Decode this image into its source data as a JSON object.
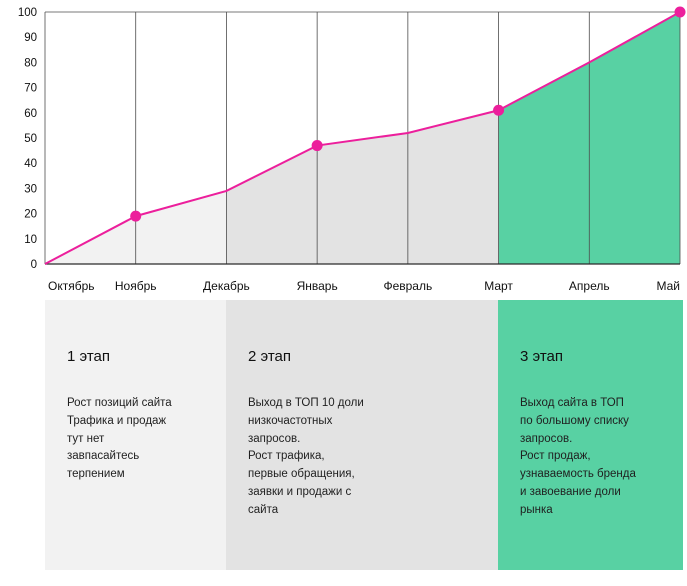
{
  "chart_data": {
    "type": "area",
    "title": "",
    "x": [
      "Октябрь",
      "Ноябрь",
      "Декабрь",
      "Январь",
      "Февраль",
      "Март",
      "Апрель",
      "Май"
    ],
    "values": [
      0,
      19,
      29,
      47,
      52,
      61,
      80,
      100
    ],
    "marked": [
      "Ноябрь",
      "Январь",
      "Март",
      "Май"
    ],
    "ylim": [
      0,
      100
    ],
    "ytick_step": 10,
    "grid": "vertical",
    "legend": "none",
    "line_color": "#ec1f9c",
    "grid_color": "#4d4d4d",
    "axis_color": "#2b2b2b",
    "segments": [
      {
        "from": "Октябрь",
        "to": "Декабрь",
        "fill": "#f2f2f2"
      },
      {
        "from": "Декабрь",
        "to": "Март",
        "fill": "#e3e3e3"
      },
      {
        "from": "Март",
        "to": "Май",
        "fill": "#58d1a3"
      }
    ]
  },
  "stages": [
    {
      "title": "1 этап",
      "body": "Рост позиций сайта\nТрафика и продаж\nтут нет\nзавпасайтесь\nтерпением",
      "bg": "#f2f2f2"
    },
    {
      "title": "2 этап",
      "body": "Выход в ТОП 10 доли\nнизкочастотных\nзапросов.\nРост трафика,\nпервые обращения,\nзаявки и продажи с\nсайта",
      "bg": "#e3e3e3"
    },
    {
      "title": "3 этап",
      "body": "Выход сайта в ТОП\nпо большому списку\nзапросов.\nРост продаж,\nузнаваемость бренда\nи завоевание доли\nрынка",
      "bg": "#58d1a3"
    }
  ]
}
